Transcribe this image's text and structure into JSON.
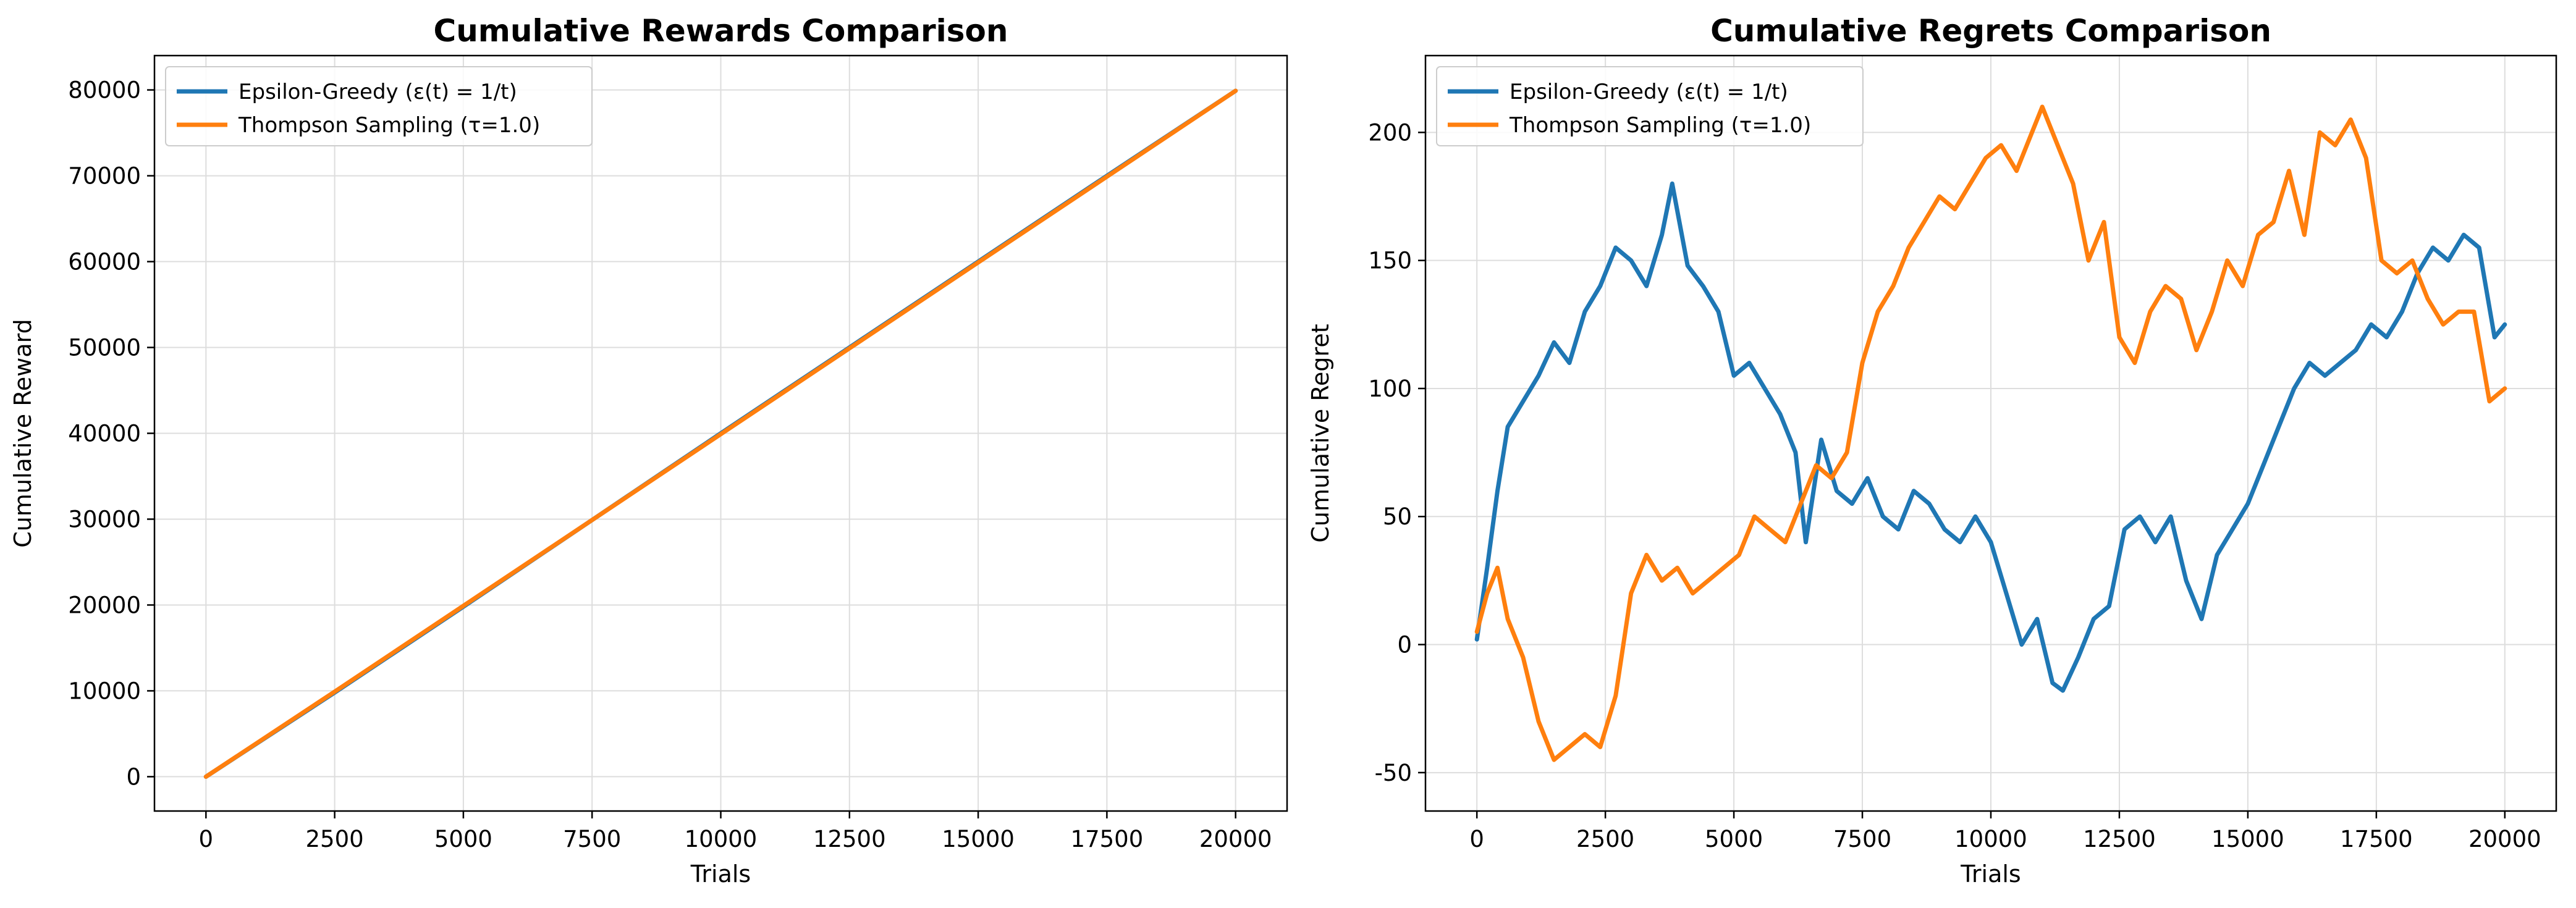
{
  "colors": {
    "series_1": "#1f77b4",
    "series_2": "#ff7f0e"
  },
  "chart_data": [
    {
      "type": "line",
      "title": "Cumulative Rewards Comparison",
      "xlabel": "Trials",
      "ylabel": "Cumulative Reward",
      "xlim": [
        -1000,
        21000
      ],
      "ylim": [
        -4000,
        84000
      ],
      "xticks": [
        0,
        2500,
        5000,
        7500,
        10000,
        12500,
        15000,
        17500,
        20000
      ],
      "yticks": [
        0,
        10000,
        20000,
        30000,
        40000,
        50000,
        60000,
        70000,
        80000
      ],
      "grid": true,
      "legend_position": "top-left",
      "series": [
        {
          "name": "Epsilon-Greedy (ε(t) = 1/t)",
          "color": "#1f77b4",
          "x": [
            0,
            2500,
            5000,
            7500,
            10000,
            12500,
            15000,
            17500,
            20000
          ],
          "y": [
            0,
            9800,
            19800,
            29900,
            40000,
            50000,
            60000,
            70000,
            79900
          ]
        },
        {
          "name": "Thompson Sampling (τ=1.0)",
          "color": "#ff7f0e",
          "x": [
            0,
            2500,
            5000,
            7500,
            10000,
            12500,
            15000,
            17500,
            20000
          ],
          "y": [
            0,
            9900,
            19900,
            29900,
            39900,
            49900,
            59900,
            69900,
            79900
          ]
        }
      ]
    },
    {
      "type": "line",
      "title": "Cumulative Regrets Comparison",
      "xlabel": "Trials",
      "ylabel": "Cumulative Regret",
      "xlim": [
        -1000,
        21000
      ],
      "ylim": [
        -65,
        230
      ],
      "xticks": [
        0,
        2500,
        5000,
        7500,
        10000,
        12500,
        15000,
        17500,
        20000
      ],
      "yticks": [
        -50,
        0,
        50,
        100,
        150,
        200
      ],
      "grid": true,
      "legend_position": "top-left",
      "series": [
        {
          "name": "Epsilon-Greedy (ε(t) = 1/t)",
          "color": "#1f77b4",
          "x": [
            0,
            200,
            400,
            600,
            900,
            1200,
            1500,
            1800,
            2100,
            2400,
            2700,
            3000,
            3300,
            3600,
            3800,
            4100,
            4400,
            4700,
            5000,
            5300,
            5600,
            5900,
            6200,
            6400,
            6700,
            7000,
            7300,
            7600,
            7900,
            8200,
            8500,
            8800,
            9100,
            9400,
            9700,
            10000,
            10300,
            10600,
            10900,
            11200,
            11400,
            11700,
            12000,
            12300,
            12600,
            12900,
            13200,
            13500,
            13800,
            14100,
            14400,
            14700,
            15000,
            15300,
            15600,
            15900,
            16200,
            16500,
            16800,
            17100,
            17400,
            17700,
            18000,
            18300,
            18600,
            18900,
            19200,
            19500,
            19800,
            20000
          ],
          "y": [
            2,
            30,
            60,
            85,
            95,
            105,
            118,
            110,
            130,
            140,
            155,
            150,
            140,
            160,
            180,
            148,
            140,
            130,
            105,
            110,
            100,
            90,
            75,
            40,
            80,
            60,
            55,
            65,
            50,
            45,
            60,
            55,
            45,
            40,
            50,
            40,
            20,
            0,
            10,
            -15,
            -18,
            -5,
            10,
            15,
            45,
            50,
            40,
            50,
            25,
            10,
            35,
            45,
            55,
            70,
            85,
            100,
            110,
            105,
            110,
            115,
            125,
            120,
            130,
            145,
            155,
            150,
            160,
            155,
            120,
            125
          ]
        },
        {
          "name": "Thompson Sampling (τ=1.0)",
          "color": "#ff7f0e",
          "x": [
            0,
            200,
            400,
            600,
            900,
            1200,
            1500,
            1800,
            2100,
            2400,
            2700,
            3000,
            3300,
            3600,
            3900,
            4200,
            4500,
            4800,
            5100,
            5400,
            5700,
            6000,
            6300,
            6600,
            6900,
            7200,
            7500,
            7800,
            8100,
            8400,
            8700,
            9000,
            9300,
            9600,
            9900,
            10200,
            10500,
            10800,
            11000,
            11300,
            11600,
            11900,
            12200,
            12500,
            12800,
            13100,
            13400,
            13700,
            14000,
            14300,
            14600,
            14900,
            15200,
            15500,
            15800,
            16100,
            16400,
            16700,
            17000,
            17300,
            17600,
            17900,
            18200,
            18500,
            18800,
            19100,
            19400,
            19700,
            20000
          ],
          "y": [
            5,
            20,
            30,
            10,
            -5,
            -30,
            -45,
            -40,
            -35,
            -40,
            -20,
            20,
            35,
            25,
            30,
            20,
            25,
            30,
            35,
            50,
            45,
            40,
            55,
            70,
            65,
            75,
            110,
            130,
            140,
            155,
            165,
            175,
            170,
            180,
            190,
            195,
            185,
            200,
            210,
            195,
            180,
            150,
            165,
            120,
            110,
            130,
            140,
            135,
            115,
            130,
            150,
            140,
            160,
            165,
            185,
            160,
            200,
            195,
            205,
            190,
            150,
            145,
            150,
            135,
            125,
            130,
            130,
            95,
            100
          ]
        }
      ]
    }
  ]
}
